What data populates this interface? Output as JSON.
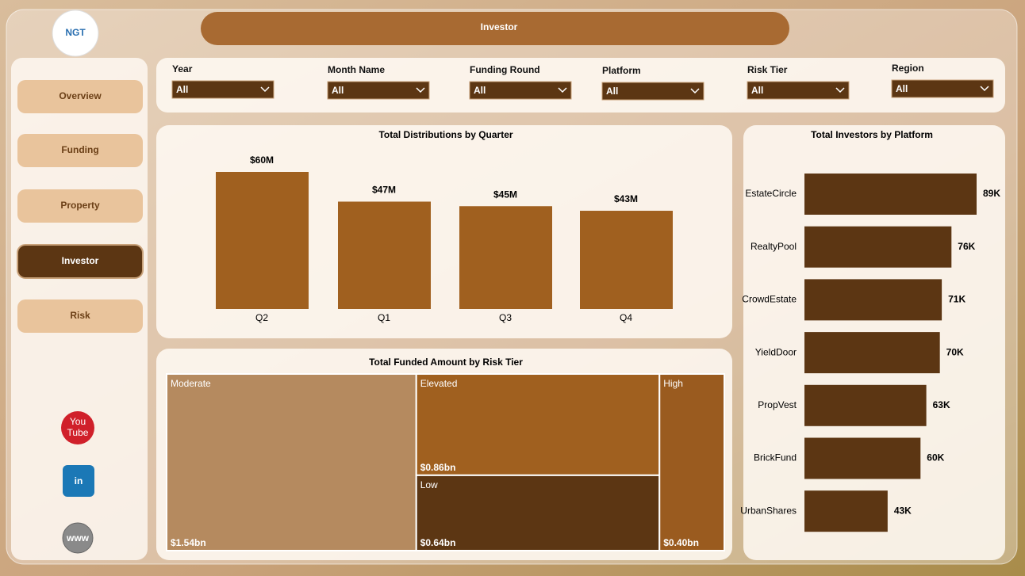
{
  "header": {
    "logo": "NGT",
    "title": "Investor"
  },
  "nav": {
    "items": [
      "Overview",
      "Funding",
      "Property",
      "Investor",
      "Risk"
    ],
    "active": 3
  },
  "social": {
    "youtube": [
      "You",
      "Tube"
    ],
    "linkedin": "in",
    "web": "www"
  },
  "filters": [
    {
      "label": "Year",
      "value": "All"
    },
    {
      "label": "Month Name",
      "value": "All"
    },
    {
      "label": "Funding Round",
      "value": "All"
    },
    {
      "label": "Platform",
      "value": "All"
    },
    {
      "label": "Risk Tier",
      "value": "All"
    },
    {
      "label": "Region",
      "value": "All"
    }
  ],
  "chart_data": [
    {
      "type": "bar",
      "title": "Total Distributions by Quarter",
      "categories": [
        "Q2",
        "Q1",
        "Q3",
        "Q4"
      ],
      "values": [
        60,
        47,
        45,
        43
      ],
      "value_labels": [
        "$60M",
        "$47M",
        "$45M",
        "$43M"
      ],
      "color": "#a0601f"
    },
    {
      "type": "hbar",
      "title": "Total Investors by Platform",
      "categories": [
        "EstateCircle",
        "RealtyPool",
        "CrowdEstate",
        "YieldDoor",
        "PropVest",
        "BrickFund",
        "UrbanShares"
      ],
      "values": [
        89,
        76,
        71,
        70,
        63,
        60,
        43
      ],
      "value_labels": [
        "89K",
        "76K",
        "71K",
        "70K",
        "63K",
        "60K",
        "43K"
      ],
      "color": "#5c3613"
    },
    {
      "type": "treemap",
      "title": "Total Funded Amount by Risk Tier",
      "categories": [
        "Moderate",
        "Elevated",
        "Low",
        "High"
      ],
      "values": [
        1.54,
        0.86,
        0.64,
        0.4
      ],
      "value_labels": [
        "$1.54bn",
        "$0.86bn",
        "$0.64bn",
        "$0.40bn"
      ],
      "colors": [
        "#b58a5f",
        "#a0601f",
        "#5c3613",
        "#9a5b1f"
      ]
    }
  ]
}
